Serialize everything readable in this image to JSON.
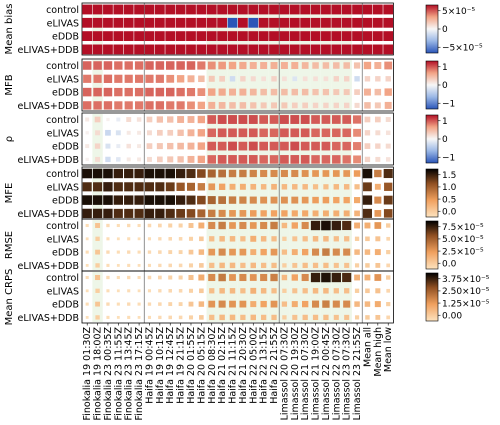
{
  "chart_data": {
    "type": "heatmap",
    "marker": "sized-squares",
    "columns": [
      "Finokalia 19 01:30Z",
      "Finokalia 19 18:00Z",
      "Finokalia 23 00:35Z",
      "Finokalia 23 11:55Z",
      "Finokalia 23 13:45Z",
      "Finokalia 23 17:15Z",
      "Haifa 19 00:45Z",
      "Haifa 19 10:15Z",
      "Haifa 19 12:45Z",
      "Haifa 19 21:15Z",
      "Haifa 20 01:55Z",
      "Haifa 20 05:15Z",
      "Haifa 20 08:30Z",
      "Haifa 21 02:15Z",
      "Haifa 21 11:15Z",
      "Haifa 21 20:30Z",
      "Haifa 22 05:00Z",
      "Haifa 22 13:15Z",
      "Haifa 22 21:55Z",
      "Limassol 20 07:30Z",
      "Limassol 20 19:30Z",
      "Limassol 21 07:30Z",
      "Limassol 21 19:00Z",
      "Limassol 22 00:45Z",
      "Limassol 22 07:30Z",
      "Limassol 23 07:30Z",
      "Limassol 23 21:55Z",
      "Mean all",
      "Mean high",
      "Mean low"
    ],
    "rows": [
      "control",
      "eLIVAS",
      "eDDB",
      "eLIVAS+DDB"
    ],
    "highlight_columns": [
      1,
      12,
      13,
      14,
      15,
      16,
      17,
      18,
      19,
      20,
      21,
      22,
      23,
      24,
      25
    ],
    "panels": [
      {
        "metric": "Mean bias",
        "colormap": "diverging-blue-red",
        "colorbar_ticks": [
          "5×10⁻⁵",
          "0",
          "−5×10⁻⁵"
        ],
        "colorbar_range": [
          -7e-05,
          7e-05
        ],
        "values": [
          [
            0.02,
            0.06,
            0.03,
            0.02,
            0.03,
            0.02,
            0.04,
            0.05,
            0.05,
            0.04,
            0.1,
            0.2,
            0.32,
            0.36,
            0.32,
            0.36,
            0.3,
            0.36,
            0.32,
            0.16,
            0.24,
            0.32,
            0.8,
            0.84,
            0.8,
            0.8,
            0.2,
            0.2,
            0.28,
            0.1
          ],
          [
            0.01,
            0.04,
            0.02,
            0.01,
            0.02,
            0.02,
            0.02,
            0.03,
            0.03,
            0.04,
            0.05,
            0.08,
            0.1,
            0.12,
            -0.15,
            0.1,
            -0.25,
            0.15,
            0.1,
            0.08,
            0.1,
            0.15,
            0.06,
            0.08,
            0.05,
            0.06,
            0.04,
            0.06,
            0.07,
            0.03
          ],
          [
            0.02,
            0.08,
            0.03,
            0.03,
            0.03,
            0.02,
            0.03,
            0.04,
            0.05,
            0.05,
            0.1,
            0.15,
            0.3,
            0.35,
            0.3,
            0.28,
            0.15,
            0.2,
            0.28,
            0.12,
            0.18,
            0.2,
            0.3,
            0.34,
            0.3,
            0.28,
            0.12,
            0.14,
            0.15,
            0.08
          ],
          [
            0.01,
            0.05,
            0.02,
            0.02,
            0.02,
            0.01,
            0.02,
            0.03,
            0.03,
            0.03,
            0.05,
            0.08,
            0.1,
            0.1,
            0.12,
            0.1,
            0.12,
            0.1,
            0.1,
            0.06,
            0.08,
            0.1,
            0.07,
            0.08,
            0.06,
            0.06,
            0.04,
            0.05,
            0.06,
            0.03
          ]
        ]
      },
      {
        "metric": "MFB",
        "colormap": "diverging-blue-red",
        "colorbar_ticks": [
          "1",
          "0",
          "−1"
        ],
        "colorbar_range": [
          -1.4,
          1.4
        ],
        "values": [
          [
            1.0,
            1.0,
            1.0,
            0.95,
            0.95,
            0.95,
            1.0,
            1.0,
            1.0,
            1.0,
            1.0,
            0.9,
            0.8,
            0.75,
            0.7,
            0.65,
            0.6,
            0.6,
            0.6,
            0.6,
            0.6,
            0.55,
            0.5,
            0.5,
            0.5,
            0.5,
            0.45,
            0.7,
            0.6,
            0.8
          ],
          [
            0.9,
            0.9,
            0.95,
            0.9,
            0.9,
            0.9,
            0.9,
            0.9,
            0.8,
            0.7,
            0.6,
            0.5,
            0.4,
            0.35,
            -0.3,
            0.3,
            0.25,
            0.2,
            0.3,
            0.2,
            -0.2,
            0.2,
            0.2,
            0.2,
            0.3,
            0.3,
            -0.3,
            0.3,
            0.3,
            0.3
          ],
          [
            1.0,
            1.0,
            1.0,
            0.95,
            0.95,
            0.95,
            1.0,
            1.0,
            1.0,
            0.95,
            0.9,
            0.8,
            0.7,
            0.65,
            0.6,
            0.6,
            0.55,
            0.5,
            0.5,
            0.5,
            0.5,
            0.5,
            0.45,
            0.45,
            0.4,
            0.4,
            0.35,
            0.6,
            0.5,
            0.7
          ],
          [
            0.95,
            0.95,
            0.95,
            0.9,
            0.9,
            0.9,
            0.95,
            0.95,
            0.9,
            0.9,
            0.8,
            0.7,
            0.6,
            0.55,
            0.5,
            0.5,
            0.45,
            0.4,
            0.4,
            0.4,
            0.35,
            0.35,
            0.3,
            0.3,
            0.3,
            0.3,
            0.25,
            0.5,
            0.4,
            0.6
          ]
        ]
      },
      {
        "metric": "ρ",
        "colormap": "diverging-blue-red",
        "colorbar_ticks": [
          "1",
          "0",
          "−1"
        ],
        "colorbar_range": [
          -1.2,
          1.2
        ],
        "values": [
          [
            0.1,
            0.3,
            0.05,
            -0.1,
            0.2,
            0.15,
            0.3,
            0.4,
            0.4,
            0.5,
            0.5,
            0.6,
            0.9,
            0.95,
            0.95,
            0.95,
            0.95,
            0.9,
            0.9,
            0.95,
            0.95,
            0.95,
            0.9,
            0.9,
            0.9,
            0.9,
            0.8,
            0.3,
            0.3,
            0.2
          ],
          [
            0.05,
            0.2,
            -0.3,
            -0.2,
            0.1,
            0.1,
            0.2,
            0.3,
            0.3,
            0.4,
            0.5,
            0.6,
            0.85,
            0.9,
            0.9,
            0.9,
            0.9,
            0.85,
            0.85,
            0.9,
            0.9,
            0.9,
            0.85,
            0.85,
            0.85,
            0.85,
            0.7,
            0.25,
            0.2,
            0.15
          ],
          [
            0.1,
            0.25,
            -0.2,
            -0.1,
            0.15,
            0.1,
            0.3,
            0.35,
            0.4,
            0.45,
            0.5,
            0.6,
            0.9,
            0.9,
            0.95,
            0.9,
            0.95,
            0.9,
            0.9,
            0.9,
            0.95,
            0.9,
            0.9,
            0.9,
            0.85,
            0.85,
            0.75,
            0.3,
            0.25,
            0.2
          ],
          [
            0.05,
            0.2,
            -0.25,
            -0.15,
            0.1,
            0.1,
            0.2,
            0.3,
            0.35,
            0.4,
            0.5,
            0.6,
            0.85,
            0.9,
            0.9,
            0.9,
            0.9,
            0.85,
            0.85,
            0.9,
            0.9,
            0.9,
            0.85,
            0.85,
            0.85,
            0.8,
            0.7,
            0.25,
            0.2,
            0.15
          ]
        ]
      },
      {
        "metric": "MFE",
        "colormap": "copper",
        "colorbar_ticks": [
          "1.5",
          "1.0",
          "0.5",
          "0.0"
        ],
        "colorbar_range": [
          0,
          1.8
        ],
        "values": [
          [
            1.7,
            1.7,
            1.7,
            1.6,
            1.6,
            1.6,
            1.7,
            1.7,
            1.7,
            1.6,
            1.5,
            1.3,
            1.1,
            1.0,
            0.9,
            0.9,
            0.85,
            0.8,
            0.8,
            0.8,
            0.8,
            0.75,
            0.7,
            0.7,
            0.7,
            0.7,
            0.65,
            1.7,
            0.9,
            1.5
          ],
          [
            1.5,
            1.5,
            1.6,
            1.5,
            1.5,
            1.5,
            1.5,
            1.5,
            1.4,
            1.2,
            1.1,
            0.9,
            0.7,
            0.6,
            0.5,
            0.5,
            0.45,
            0.4,
            0.45,
            0.4,
            0.4,
            0.4,
            0.35,
            0.35,
            0.4,
            0.4,
            0.35,
            1.4,
            0.5,
            1.2
          ],
          [
            1.7,
            1.7,
            1.7,
            1.6,
            1.6,
            1.6,
            1.7,
            1.7,
            1.7,
            1.6,
            1.5,
            1.3,
            1.1,
            1.0,
            0.9,
            0.85,
            0.8,
            0.75,
            0.75,
            0.75,
            0.75,
            0.7,
            0.65,
            0.65,
            0.6,
            0.6,
            0.55,
            1.6,
            0.8,
            1.4
          ],
          [
            1.6,
            1.6,
            1.6,
            1.5,
            1.5,
            1.5,
            1.6,
            1.6,
            1.5,
            1.4,
            1.3,
            1.1,
            0.9,
            0.8,
            0.7,
            0.7,
            0.65,
            0.6,
            0.6,
            0.6,
            0.55,
            0.55,
            0.5,
            0.5,
            0.5,
            0.5,
            0.45,
            1.5,
            0.7,
            1.3
          ]
        ]
      },
      {
        "metric": "RMSE",
        "colormap": "copper",
        "colorbar_ticks": [
          "7.5×10⁻⁵",
          "5.0×10⁻⁵",
          "2.5×10⁻⁵",
          "0.0"
        ],
        "colorbar_range": [
          0,
          9e-05
        ],
        "values": [
          [
            3e-06,
            1.5e-05,
            4e-06,
            3e-06,
            4e-06,
            3e-06,
            5e-06,
            6e-06,
            8e-06,
            8e-06,
            1.5e-05,
            2.5e-05,
            4e-05,
            4.5e-05,
            3.5e-05,
            4e-05,
            3.5e-05,
            4e-05,
            4.5e-05,
            2e-05,
            3e-05,
            4e-05,
            8e-05,
            8.5e-05,
            8e-05,
            7.5e-05,
            2.5e-05,
            2.5e-05,
            3.5e-05,
            1e-05
          ],
          [
            2e-06,
            1e-05,
            3e-06,
            2e-06,
            3e-06,
            2e-06,
            3e-06,
            4e-06,
            5e-06,
            5e-06,
            8e-06,
            1.2e-05,
            1.8e-05,
            2e-05,
            2e-05,
            1.8e-05,
            2.5e-05,
            2e-05,
            1.8e-05,
            1e-05,
            1.5e-05,
            1.8e-05,
            2e-05,
            2e-05,
            1.8e-05,
            1.8e-05,
            1e-05,
            1.2e-05,
            1.5e-05,
            6e-06
          ],
          [
            3e-06,
            1.4e-05,
            4e-06,
            3e-06,
            4e-06,
            3e-06,
            4e-06,
            5e-06,
            7e-06,
            7e-06,
            1.3e-05,
            2e-05,
            3.5e-05,
            4e-05,
            3.5e-05,
            3.5e-05,
            2.5e-05,
            3e-05,
            3.5e-05,
            1.8e-05,
            2.5e-05,
            3e-05,
            4e-05,
            4.5e-05,
            4e-05,
            4e-05,
            2e-05,
            2e-05,
            2.5e-05,
            9e-06
          ],
          [
            2e-06,
            1e-05,
            3e-06,
            2e-06,
            3e-06,
            2e-06,
            3e-06,
            4e-06,
            5e-06,
            5e-06,
            8e-06,
            1.2e-05,
            1.8e-05,
            2e-05,
            2e-05,
            1.8e-05,
            2e-05,
            1.8e-05,
            1.8e-05,
            1e-05,
            1.5e-05,
            1.8e-05,
            1.8e-05,
            1.8e-05,
            1.6e-05,
            1.6e-05,
            9e-06,
            1.1e-05,
            1.4e-05,
            6e-06
          ]
        ]
      },
      {
        "metric": "Mean CRPS",
        "colormap": "copper",
        "colorbar_ticks": [
          "3.75×10⁻⁵",
          "2.50×10⁻⁵",
          "1.25×10⁻⁵",
          "0.00"
        ],
        "colorbar_range": [
          0,
          4.5e-05
        ],
        "values": [
          [
            1.5e-06,
            8e-06,
            2e-06,
            1.5e-06,
            2e-06,
            1.5e-06,
            2.5e-06,
            3e-06,
            4e-06,
            4e-06,
            8e-06,
            1.3e-05,
            2e-05,
            2.3e-05,
            1.8e-05,
            2e-05,
            1.8e-05,
            2e-05,
            2.2e-05,
            1e-05,
            1.5e-05,
            2e-05,
            4e-05,
            4.2e-05,
            4e-05,
            3.8e-05,
            1.2e-05,
            1.2e-05,
            1.8e-05,
            5e-06
          ],
          [
            1e-06,
            5e-06,
            1.5e-06,
            1e-06,
            1.5e-06,
            1e-06,
            1.5e-06,
            2e-06,
            2.5e-06,
            2.5e-06,
            4e-06,
            6e-06,
            9e-06,
            1e-05,
            1e-05,
            9e-06,
            1.2e-05,
            1e-05,
            9e-06,
            5e-06,
            8e-06,
            9e-06,
            1e-05,
            1e-05,
            9e-06,
            9e-06,
            5e-06,
            6e-06,
            8e-06,
            3e-06
          ],
          [
            1.5e-06,
            7e-06,
            2e-06,
            1.5e-06,
            2e-06,
            1.5e-06,
            2e-06,
            2.5e-06,
            3.5e-06,
            3.5e-06,
            7e-06,
            1e-05,
            1.8e-05,
            2e-05,
            1.8e-05,
            1.8e-05,
            1.3e-05,
            1.5e-05,
            1.8e-05,
            9e-06,
            1.3e-05,
            1.5e-05,
            2e-05,
            2.2e-05,
            2e-05,
            2e-05,
            1e-05,
            1e-05,
            1.3e-05,
            4.5e-06
          ],
          [
            1e-06,
            5e-06,
            1.5e-06,
            1e-06,
            1.5e-06,
            1e-06,
            1.5e-06,
            2e-06,
            2.5e-06,
            2.5e-06,
            4e-06,
            6e-06,
            9e-06,
            1e-05,
            1e-05,
            9e-06,
            1e-05,
            9e-06,
            9e-06,
            5e-06,
            8e-06,
            9e-06,
            9e-06,
            9e-06,
            8e-06,
            8e-06,
            4.5e-06,
            5.5e-06,
            7e-06,
            3e-06
          ]
        ]
      }
    ]
  }
}
